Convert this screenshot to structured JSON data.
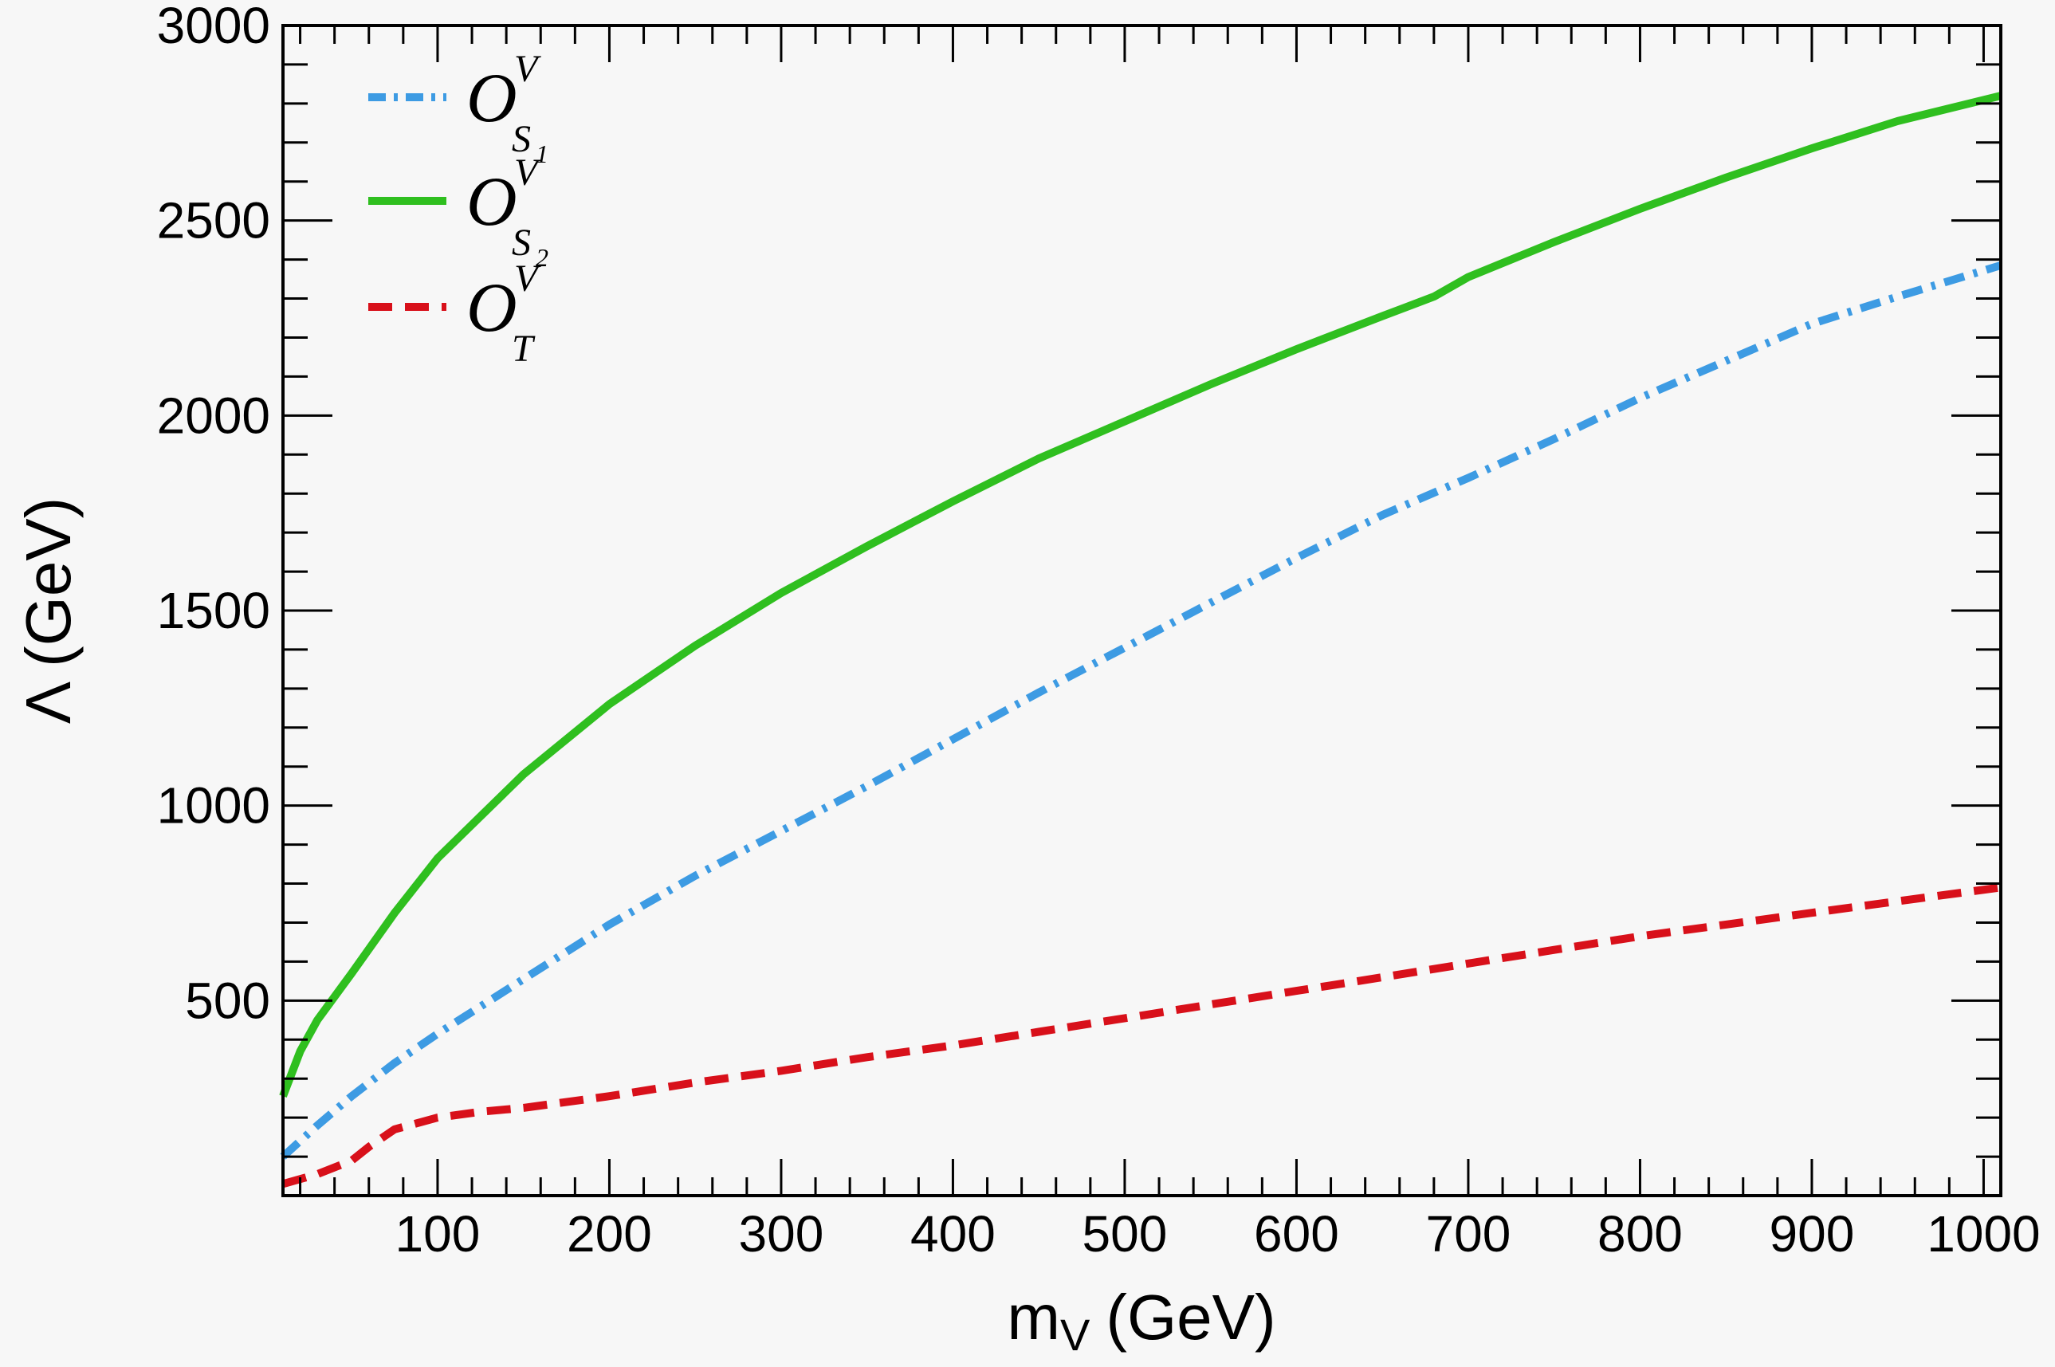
{
  "chart_data": {
    "type": "line",
    "xlabel": "m",
    "xlabel_sub": "V",
    "xlabel_unit": "(GeV)",
    "ylabel": "Λ (GeV)",
    "xlim": [
      10,
      1010
    ],
    "ylim": [
      0,
      3000
    ],
    "x_ticks": [
      100,
      200,
      300,
      400,
      500,
      600,
      700,
      800,
      900,
      1000
    ],
    "y_ticks": [
      500,
      1000,
      1500,
      2000,
      2500,
      3000
    ],
    "x_minor_step": 20,
    "y_minor_step": 100,
    "grid": false,
    "legend_position": "top-left",
    "series": [
      {
        "legend": {
          "base": "O",
          "sup": "V",
          "sub": "S",
          "subsub": "1"
        },
        "color": "#3d9be3",
        "dash": "dashdot",
        "x": [
          10,
          30,
          50,
          75,
          100,
          150,
          200,
          250,
          300,
          350,
          400,
          450,
          500,
          550,
          600,
          650,
          700,
          750,
          800,
          850,
          900,
          950,
          1010
        ],
        "y": [
          100,
          180,
          255,
          340,
          415,
          555,
          695,
          820,
          935,
          1050,
          1170,
          1290,
          1405,
          1520,
          1635,
          1745,
          1840,
          1940,
          2045,
          2140,
          2235,
          2305,
          2385
        ]
      },
      {
        "legend": {
          "base": "O",
          "sup": "V",
          "sub": "S",
          "subsub": "2"
        },
        "color": "#2fbf1f",
        "dash": "solid",
        "x": [
          10,
          20,
          30,
          50,
          75,
          100,
          150,
          200,
          250,
          300,
          350,
          400,
          450,
          500,
          550,
          600,
          650,
          680,
          700,
          750,
          800,
          850,
          900,
          950,
          1010
        ],
        "y": [
          255,
          370,
          450,
          570,
          725,
          865,
          1080,
          1260,
          1410,
          1545,
          1665,
          1780,
          1890,
          1985,
          2080,
          2170,
          2255,
          2305,
          2355,
          2445,
          2530,
          2610,
          2685,
          2755,
          2820
        ]
      },
      {
        "legend": {
          "base": "O",
          "sup": "V",
          "sub": "T",
          "subsub": ""
        },
        "color": "#d8101a",
        "dash": "dashed",
        "x": [
          10,
          30,
          50,
          60,
          75,
          100,
          125,
          150,
          200,
          250,
          300,
          350,
          400,
          450,
          500,
          550,
          600,
          650,
          700,
          750,
          800,
          850,
          900,
          950,
          1010
        ],
        "y": [
          30,
          55,
          90,
          125,
          170,
          200,
          215,
          225,
          255,
          290,
          320,
          355,
          385,
          420,
          455,
          490,
          525,
          560,
          595,
          630,
          665,
          695,
          725,
          755,
          790
        ]
      }
    ]
  }
}
